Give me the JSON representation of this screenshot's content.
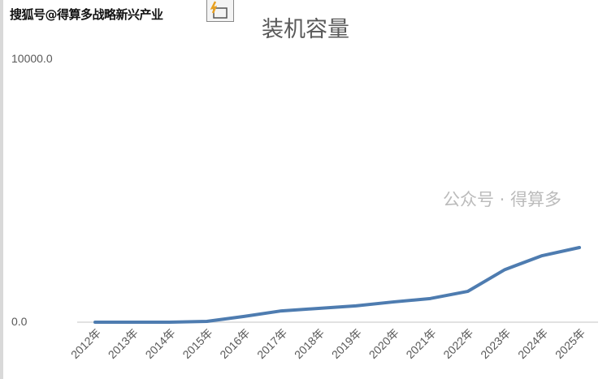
{
  "source_label": "搜狐号@得算多战略新兴产业",
  "watermark": "公众号 · 得算多",
  "chart_data": {
    "type": "line",
    "title": "装机容量",
    "categories": [
      "2012年",
      "2013年",
      "2014年",
      "2015年",
      "2016年",
      "2017年",
      "2018年",
      "2019年",
      "2020年",
      "2021年",
      "2022年",
      "2023年",
      "2024年",
      "2025年"
    ],
    "series": [
      {
        "values": [
          0,
          0,
          0,
          30,
          220,
          430,
          525,
          620,
          770,
          900,
          1170,
          2000,
          2530,
          2840
        ],
        "color": "#4e7cb0"
      }
    ],
    "yticks": [
      "0.0",
      "10000.0"
    ],
    "ylim": [
      0,
      10000
    ],
    "grid": false,
    "axis_color": "#d9d9d9"
  }
}
